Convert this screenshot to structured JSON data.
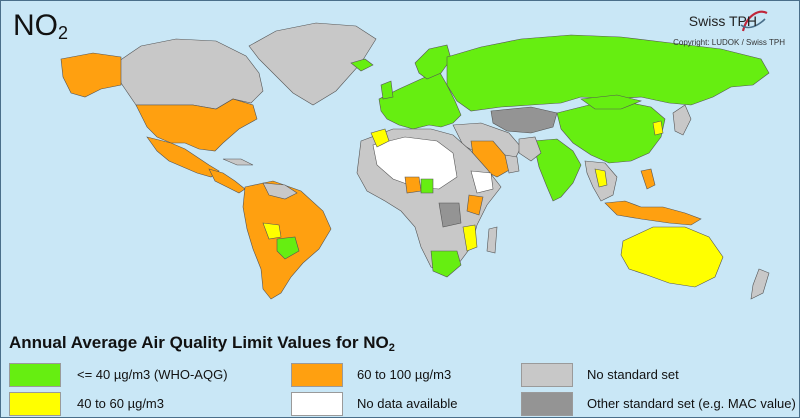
{
  "title": {
    "main": "NO",
    "sub": "2"
  },
  "brand": {
    "name": "Swiss TPH",
    "copyright": "Copyright: LUDOK / Swiss TPH"
  },
  "legend": {
    "title": "Annual Average Air Quality Limit Values for NO",
    "title_sub": "2",
    "items": [
      {
        "label": "<= 40 µg/m3 (WHO-AQG)",
        "color": "#66ee11"
      },
      {
        "label": "40 to 60 µg/m3",
        "color": "#ffff00"
      },
      {
        "label": "60 to 100 µg/m3",
        "color": "#ffa010"
      },
      {
        "label": "No data available",
        "color": "#ffffff"
      },
      {
        "label": "No standard set",
        "color": "#c8c8c8"
      },
      {
        "label": "Other standard set (e.g. MAC value)",
        "color": "#949494"
      }
    ]
  },
  "colors": {
    "ocean": "#c9e7f6",
    "border": "#555555"
  }
}
